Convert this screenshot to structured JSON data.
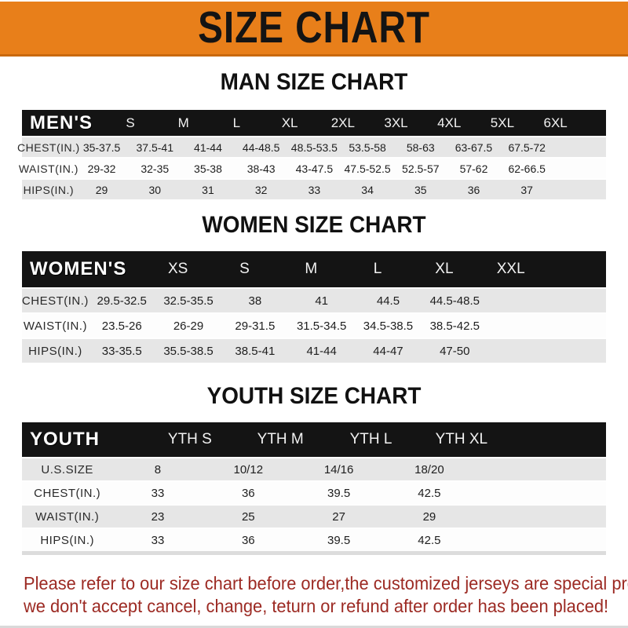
{
  "banner": {
    "title": "SIZE CHART"
  },
  "sections": [
    {
      "name": "men",
      "heading": "MAN SIZE CHART",
      "header_label": "MEN'S",
      "columns": [
        "S",
        "M",
        "L",
        "XL",
        "2XL",
        "3XL",
        "4XL",
        "5XL",
        "6XL"
      ],
      "rows": [
        {
          "label": "CHEST(IN.)",
          "values": [
            "35-37.5",
            "37.5-41",
            "41-44",
            "44-48.5",
            "48.5-53.5",
            "53.5-58",
            "58-63",
            "63-67.5",
            "67.5-72"
          ]
        },
        {
          "label": "WAIST(IN.)",
          "values": [
            "29-32",
            "32-35",
            "35-38",
            "38-43",
            "43-47.5",
            "47.5-52.5",
            "52.5-57",
            "57-62",
            "62-66.5"
          ]
        },
        {
          "label": "HIPS(IN.)",
          "values": [
            "29",
            "30",
            "31",
            "32",
            "33",
            "34",
            "35",
            "36",
            "37"
          ]
        }
      ]
    },
    {
      "name": "women",
      "heading": "WOMEN SIZE CHART",
      "header_label": "WOMEN'S",
      "columns": [
        "XS",
        "S",
        "M",
        "L",
        "XL",
        "XXL"
      ],
      "rows": [
        {
          "label": "CHEST(IN.)",
          "values": [
            "29.5-32.5",
            "32.5-35.5",
            "38",
            "41",
            "44.5",
            "44.5-48.5"
          ]
        },
        {
          "label": "WAIST(IN.)",
          "values": [
            "23.5-26",
            "26-29",
            "29-31.5",
            "31.5-34.5",
            "34.5-38.5",
            "38.5-42.5"
          ]
        },
        {
          "label": "HIPS(IN.)",
          "values": [
            "33-35.5",
            "35.5-38.5",
            "38.5-41",
            "41-44",
            "44-47",
            "47-50"
          ]
        }
      ]
    },
    {
      "name": "youth",
      "heading": "YOUTH SIZE CHART",
      "header_label": "YOUTH",
      "columns": [
        "YTH S",
        "YTH M",
        "YTH L",
        "YTH XL"
      ],
      "rows": [
        {
          "label": "U.S.SIZE",
          "values": [
            "8",
            "10/12",
            "14/16",
            "18/20"
          ]
        },
        {
          "label": "CHEST(IN.)",
          "values": [
            "33",
            "36",
            "39.5",
            "42.5"
          ]
        },
        {
          "label": "WAIST(IN.)",
          "values": [
            "23",
            "25",
            "27",
            "29"
          ]
        },
        {
          "label": "HIPS(IN.)",
          "values": [
            "33",
            "36",
            "39.5",
            "42.5"
          ]
        }
      ]
    }
  ],
  "footer": {
    "line1": "Please refer to our size chart before order,the customized jerseys are special products,",
    "line2": "we don't accept cancel, change, teturn or refund after order has been placed!"
  },
  "colors": {
    "banner_orange": "#E87F1A",
    "banner_edge": "#C9690E",
    "bar_black": "#141414",
    "row_gray": "#E6E6E6",
    "row_white": "#FDFDFD",
    "footer_red": "#9C2A23"
  }
}
